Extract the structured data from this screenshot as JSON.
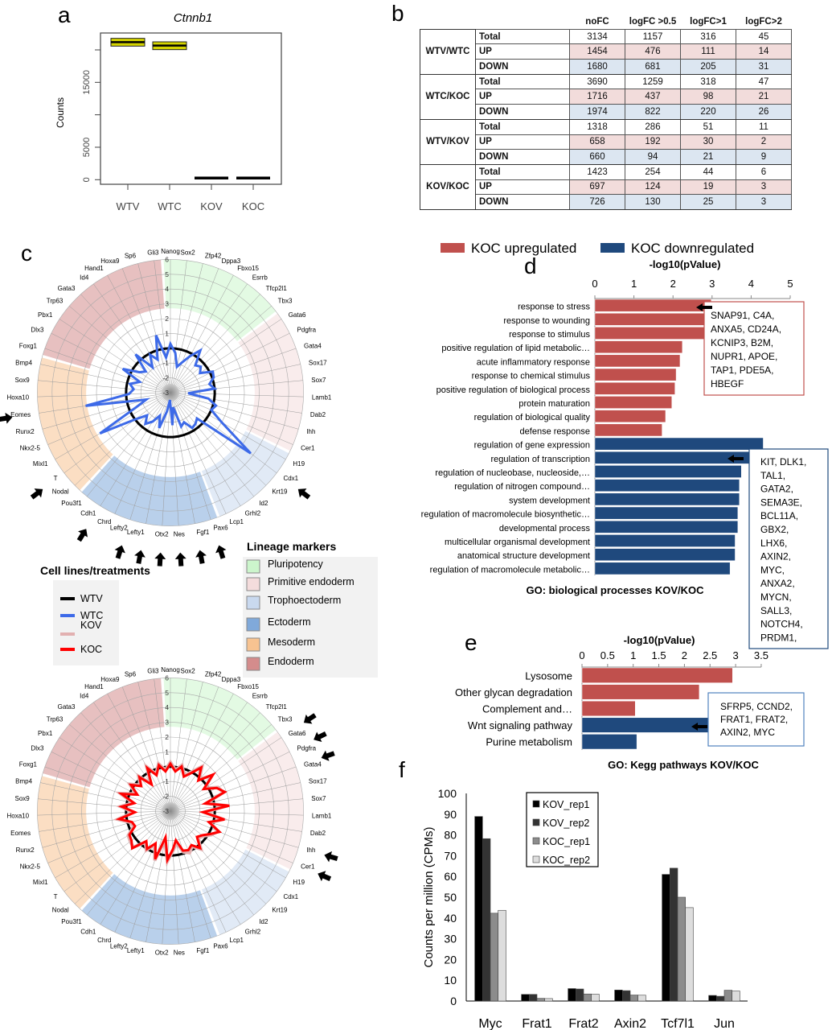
{
  "panel_letters": {
    "a": "a",
    "b": "b",
    "c": "c",
    "d": "d",
    "e": "e",
    "f": "f"
  },
  "chart_data": [
    {
      "id": "a",
      "type": "box",
      "title": "Ctnnb1",
      "ylabel": "Counts",
      "categories": [
        "WTV",
        "WTC",
        "KOV",
        "KOC"
      ],
      "boxes": [
        {
          "q1": 20580,
          "median": 21200,
          "q3": 21780
        },
        {
          "q1": 20040,
          "median": 20660,
          "q3": 21240
        },
        {
          "q1": 230,
          "median": 250,
          "q3": 270
        },
        {
          "q1": 230,
          "median": 250,
          "q3": 270
        }
      ],
      "yticks": [
        0,
        5000,
        10000,
        15000,
        20000
      ],
      "ytick_labels": [
        "0",
        "5000",
        "",
        "15000",
        ""
      ],
      "ylim": [
        -800,
        22800
      ],
      "box_color": "#d4d400"
    },
    {
      "id": "b",
      "type": "table",
      "columns": [
        "noFC",
        "logFC >0.5",
        "logFC>1",
        "logFC>2"
      ],
      "groups": [
        {
          "name": "WTV/WTC",
          "rows": [
            {
              "label": "Total",
              "values": [
                "3134",
                "1157",
                "316",
                "45"
              ]
            },
            {
              "label": "UP",
              "values": [
                "1454",
                "476",
                "111",
                "14"
              ]
            },
            {
              "label": "DOWN",
              "values": [
                "1680",
                "681",
                "205",
                "31"
              ]
            }
          ]
        },
        {
          "name": "WTC/KOC",
          "rows": [
            {
              "label": "Total",
              "values": [
                "3690",
                "1259",
                "318",
                "47"
              ]
            },
            {
              "label": "UP",
              "values": [
                "1716",
                "437",
                "98",
                "21"
              ]
            },
            {
              "label": "DOWN",
              "values": [
                "1974",
                "822",
                "220",
                "26"
              ]
            }
          ]
        },
        {
          "name": "WTV/KOV",
          "rows": [
            {
              "label": "Total",
              "values": [
                "1318",
                "286",
                "51",
                "11"
              ]
            },
            {
              "label": "UP",
              "values": [
                "658",
                "192",
                "30",
                "2"
              ]
            },
            {
              "label": "DOWN",
              "values": [
                "660",
                "94",
                "21",
                "9"
              ]
            }
          ]
        },
        {
          "name": "KOV/KOC",
          "rows": [
            {
              "label": "Total",
              "values": [
                "1423",
                "254",
                "44",
                "6"
              ]
            },
            {
              "label": "UP",
              "values": [
                "697",
                "124",
                "19",
                "3"
              ]
            },
            {
              "label": "DOWN",
              "values": [
                "726",
                "130",
                "25",
                "3"
              ]
            }
          ]
        }
      ],
      "up_color": "#f2dcdb",
      "down_color": "#dce6f1"
    },
    {
      "id": "c",
      "type": "radar",
      "genes": [
        "Nanog",
        "Sox2",
        "Zfp42",
        "Dppa3",
        "Fbxo15",
        "Esrrb",
        "Tfcp2l1",
        "Tbx3",
        "Gata6",
        "Pdgfra",
        "Gata4",
        "Sox17",
        "Sox7",
        "Lamb1",
        "Dab2",
        "Ihh",
        "Cer1",
        "H19",
        "Cdx1",
        "Krt19",
        "Id2",
        "Grhl2",
        "Lcp1",
        "Pax6",
        "Fgf1",
        "Nes",
        "Otx2",
        "Lefty1",
        "Lefty2",
        "Chrd",
        "Cdh1",
        "Pou3f1",
        "Nodal",
        "T",
        "Mixl1",
        "Nkx2-5",
        "Runx2",
        "Eomes",
        "Hoxa10",
        "Sox9",
        "Bmp4",
        "Foxg1",
        "Dlx3",
        "Pbx1",
        "Trp63",
        "Gata3",
        "Id4",
        "Hand1",
        "Hoxa9",
        "Sp6",
        "Gli3"
      ],
      "radial_range": [
        -3,
        6
      ],
      "radial_tick_labels": [
        "6",
        "5",
        "4",
        "3",
        "2",
        "1",
        "-1",
        "-2",
        "-3"
      ],
      "radial_ticks": [
        6,
        5,
        4,
        3,
        2,
        1,
        -1,
        -2,
        -3
      ],
      "sectors": [
        {
          "name": "Pluripotency",
          "from": "Nanog",
          "to": "Tbx3",
          "color": "#ccf5cc"
        },
        {
          "name": "Primitive endoderm",
          "from": "Gata6",
          "to": "Cer1",
          "color": "#f4dcdc"
        },
        {
          "name": "Trophoectoderm",
          "from": "H19",
          "to": "Lcp1",
          "color": "#c9d9ef"
        },
        {
          "name": "Ectoderm",
          "from": "Pax6",
          "to": "Pou3f1",
          "color": "#80a9da"
        },
        {
          "name": "Mesoderm",
          "from": "Nodal",
          "to": "Bmp4",
          "color": "#f7c391"
        },
        {
          "name": "Endoderm",
          "from": "Foxg1",
          "to": "Gli3",
          "color": "#d48c8c"
        }
      ],
      "lineage_legend_title": "Lineage markers",
      "cell_legend_title": "Cell lines/treatments",
      "cell_legend": [
        {
          "name": "WTV",
          "color": "#000000"
        },
        {
          "name": "WTC",
          "color": "#3d6ae8"
        },
        {
          "name": "KOV",
          "color": "#e2b0b0"
        },
        {
          "name": "KOC",
          "color": "#ff0000"
        }
      ],
      "top": {
        "series": [
          {
            "name": "WTV",
            "color": "#000000",
            "values": [
              0,
              0,
              0,
              0,
              0,
              0,
              0,
              0,
              0,
              0,
              0,
              0,
              0,
              0,
              0,
              0,
              0,
              0,
              0,
              0,
              0,
              0,
              0,
              0,
              0,
              0,
              0,
              0,
              0,
              0,
              0,
              0,
              0,
              0,
              0,
              0,
              0,
              0,
              0,
              0,
              0,
              0,
              0,
              0,
              0,
              0,
              0,
              0,
              0,
              0,
              0
            ]
          },
          {
            "name": "WTC",
            "color": "#3d6ae8",
            "values": [
              0.3,
              -0.3,
              -1.2,
              -0.8,
              -0.2,
              0.5,
              -0.5,
              -0.3,
              -0.6,
              0.2,
              0.1,
              -0.3,
              0.0,
              -1.8,
              -0.4,
              0.2,
              0.0,
              1.0,
              3.8,
              -0.5,
              -0.3,
              -0.2,
              -0.8,
              -0.6,
              -2.0,
              -0.8,
              -2.5,
              -1.7,
              -0.5,
              -1.3,
              -0.7,
              -0.3,
              -0.8,
              0.0,
              2.5,
              -0.5,
              -1.3,
              2.8,
              -0.2,
              -0.5,
              -0.2,
              -0.8,
              0.6,
              -0.5,
              -0.8,
              0.5,
              -0.9,
              -0.1,
              -0.6,
              1.0,
              -0.6
            ]
          }
        ],
        "arrow_genes": [
          "Eomes",
          "T",
          "Cdh1",
          "Lefty2",
          "Lefty1",
          "Otx2",
          "Nes",
          "Fgf1",
          "Pax6",
          "Cdx1"
        ]
      },
      "bottom": {
        "series": [
          {
            "name": "WTV",
            "color": "#000000",
            "values": [
              0,
              0,
              0,
              0,
              0,
              0,
              0,
              0,
              0,
              0,
              0,
              0,
              0,
              0,
              0,
              0,
              0,
              0,
              0,
              0,
              0,
              0,
              0,
              0,
              0,
              0,
              0,
              0,
              0,
              0,
              0,
              0,
              0,
              0,
              0,
              0,
              0,
              0,
              0,
              0,
              0,
              0,
              0,
              0,
              0,
              0,
              0,
              0,
              0,
              0,
              0
            ]
          },
          {
            "name": "KOV",
            "color": "#e2b0b0",
            "values": [
              0.3,
              -0.2,
              0.2,
              -0.4,
              0.0,
              0.7,
              -0.1,
              0.7,
              -0.2,
              0.6,
              0.8,
              -0.5,
              0.9,
              -0.7,
              0.6,
              -0.2,
              0.5,
              0.2,
              -0.2,
              -0.4,
              0.3,
              -0.2,
              0.1,
              -0.1,
              -0.8,
              -0.3,
              0.4,
              -1.0,
              0.5,
              -0.5,
              0.1,
              -0.3,
              0.5,
              0.4,
              0.3,
              -0.3,
              -0.2,
              0.6,
              -0.5,
              0.4,
              -0.4,
              0.6,
              -0.4,
              0.3,
              -0.3,
              0.2,
              -0.7,
              0.4,
              -0.3,
              0.3,
              -0.2
            ]
          },
          {
            "name": "KOC",
            "color": "#ff0000",
            "values": [
              0.2,
              -0.3,
              0.1,
              -0.5,
              -0.1,
              0.6,
              -0.2,
              0.8,
              -0.3,
              0.5,
              0.9,
              -0.6,
              1.0,
              -0.8,
              0.7,
              -0.3,
              0.6,
              0.1,
              -0.3,
              -0.5,
              0.2,
              -0.3,
              -0.1,
              -0.2,
              -1.0,
              -0.4,
              0.3,
              -1.2,
              0.4,
              -0.6,
              0.0,
              -0.4,
              0.6,
              0.3,
              0.2,
              -0.4,
              -0.3,
              0.5,
              -0.6,
              0.3,
              -0.5,
              0.5,
              -0.5,
              0.2,
              -0.4,
              0.1,
              -0.8,
              0.3,
              -0.4,
              0.2,
              -0.3
            ]
          }
        ],
        "arrow_genes": [
          "Gata6",
          "Pdgfra",
          "Gata4",
          "Ihh",
          "Cer1"
        ]
      }
    },
    {
      "id": "d",
      "type": "bar",
      "orientation": "horizontal",
      "xlabel": "-log10(pValue)",
      "xlim": [
        0,
        5
      ],
      "xticks": [
        "0",
        "1",
        "2",
        "3",
        "4",
        "5"
      ],
      "footer": "GO: biological processes KOV/KOC",
      "legend": [
        {
          "name": "KOC upregulated",
          "color": "#c0504d"
        },
        {
          "name": "KOC downregulated",
          "color": "#1f497d"
        }
      ],
      "categories": [
        "response to stress",
        "response to wounding",
        "response to stimulus",
        "positive regulation of lipid metabolic…",
        "acute inflammatory response",
        "response to chemical stimulus",
        "positive regulation of biological process",
        "protein maturation",
        "regulation of biological quality",
        "defense response",
        "regulation of gene expression",
        "regulation of transcription",
        "regulation of nucleobase, nucleoside,…",
        "regulation of nitrogen compound…",
        "system development",
        "regulation of macromolecule biosynthetic…",
        "developmental process",
        "multicellular organismal development",
        "anatomical structure development",
        "regulation of macromolecule metabolic…"
      ],
      "values": [
        2.98,
        2.91,
        2.89,
        2.24,
        2.18,
        2.08,
        2.05,
        1.97,
        1.81,
        1.72,
        4.31,
        4.2,
        3.75,
        3.7,
        3.7,
        3.66,
        3.66,
        3.59,
        3.59,
        3.46
      ],
      "groups": [
        "up",
        "up",
        "up",
        "up",
        "up",
        "up",
        "up",
        "up",
        "up",
        "up",
        "down",
        "down",
        "down",
        "down",
        "down",
        "down",
        "down",
        "down",
        "down",
        "down"
      ],
      "up_genes": [
        "SNAP91, C4A,",
        "ANXA5, CD24A,",
        "KCNIP3, B2M,",
        "NUPR1, APOE,",
        "TAP1, PDE5A,",
        "HBEGF"
      ],
      "down_genes": [
        "KIT, DLK1,",
        "TAL1,",
        "GATA2,",
        "SEMA3E,",
        "BCL11A,",
        "GBX2,",
        "LHX6,",
        "AXIN2,",
        "MYC,",
        "ANXA2,",
        "MYCN,",
        "SALL3,",
        "NOTCH4,",
        "PRDM1,"
      ]
    },
    {
      "id": "e",
      "type": "bar",
      "orientation": "horizontal",
      "xlabel": "-log10(pValue)",
      "xlim": [
        0,
        3.5
      ],
      "xticks": [
        "0",
        "0.5",
        "1",
        "1.5",
        "2",
        "2.5",
        "3",
        "3.5"
      ],
      "footer": "GO: Kegg pathways KOV/KOC",
      "categories": [
        "Lysosome",
        "Other glycan degradation",
        "Complement and…",
        "Wnt signaling pathway",
        "Purine metabolism"
      ],
      "values": [
        2.94,
        2.29,
        1.04,
        2.55,
        1.07
      ],
      "groups": [
        "up",
        "up",
        "up",
        "down",
        "down"
      ],
      "wnt_genes": [
        "SFRP5, CCND2,",
        "FRAT1, FRAT2,",
        "AXIN2, MYC"
      ]
    },
    {
      "id": "f",
      "type": "bar",
      "ylabel": "Counts per million (CPMs)",
      "ylim": [
        0,
        100
      ],
      "yticks": [
        "0",
        "10",
        "20",
        "30",
        "40",
        "50",
        "60",
        "70",
        "80",
        "90",
        "100"
      ],
      "categories": [
        "Myc",
        "Frat1",
        "Frat2",
        "Axin2",
        "Tcf7l1",
        "Jun"
      ],
      "legend_position": "top-center",
      "series": [
        {
          "name": "KOV_rep1",
          "color": "#000000",
          "values": [
            88.9,
            3.2,
            6.0,
            5.3,
            61,
            2.7
          ]
        },
        {
          "name": "KOV_rep2",
          "color": "#333333",
          "values": [
            78.2,
            3.2,
            5.8,
            5.0,
            64,
            2.3
          ]
        },
        {
          "name": "KOC_rep1",
          "color": "#8c8c8c",
          "values": [
            42.3,
            1.3,
            3.4,
            2.9,
            50,
            5.2
          ]
        },
        {
          "name": "KOC_rep2",
          "color": "#dddddd",
          "values": [
            43.7,
            1.2,
            3.3,
            2.8,
            45,
            4.8
          ]
        }
      ]
    }
  ]
}
